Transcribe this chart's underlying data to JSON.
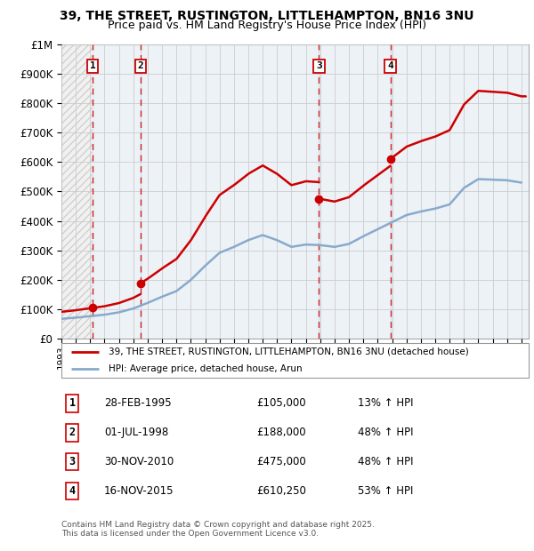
{
  "title": "39, THE STREET, RUSTINGTON, LITTLEHAMPTON, BN16 3NU",
  "subtitle": "Price paid vs. HM Land Registry's House Price Index (HPI)",
  "ylim": [
    0,
    1000000
  ],
  "yticks": [
    0,
    100000,
    200000,
    300000,
    400000,
    500000,
    600000,
    700000,
    800000,
    900000,
    1000000
  ],
  "ytick_labels": [
    "£0",
    "£100K",
    "£200K",
    "£300K",
    "£400K",
    "£500K",
    "£600K",
    "£700K",
    "£800K",
    "£900K",
    "£1M"
  ],
  "xlim_start": 1993.0,
  "xlim_end": 2025.5,
  "sale_dates": [
    1995.16,
    1998.5,
    2010.92,
    2015.88
  ],
  "sale_prices": [
    105000,
    188000,
    475000,
    610250
  ],
  "sale_labels": [
    "1",
    "2",
    "3",
    "4"
  ],
  "transaction_data": [
    {
      "num": "1",
      "date": "28-FEB-1995",
      "price": "£105,000",
      "hpi": "13% ↑ HPI"
    },
    {
      "num": "2",
      "date": "01-JUL-1998",
      "price": "£188,000",
      "hpi": "48% ↑ HPI"
    },
    {
      "num": "3",
      "date": "30-NOV-2010",
      "price": "£475,000",
      "hpi": "48% ↑ HPI"
    },
    {
      "num": "4",
      "date": "16-NOV-2015",
      "price": "£610,250",
      "hpi": "53% ↑ HPI"
    }
  ],
  "legend_line1": "39, THE STREET, RUSTINGTON, LITTLEHAMPTON, BN16 3NU (detached house)",
  "legend_line2": "HPI: Average price, detached house, Arun",
  "footer": "Contains HM Land Registry data © Crown copyright and database right 2025.\nThis data is licensed under the Open Government Licence v3.0.",
  "property_color": "#cc0000",
  "hpi_color": "#88aacc",
  "annotation_bg": "#ffffff",
  "annotation_border": "#cc0000",
  "dashed_line_color": "#cc0000",
  "shaded_color": "#ddeeff",
  "grid_color": "#cccccc",
  "background_color": "#ffffff",
  "hpi_years": [
    1993,
    1994,
    1995,
    1996,
    1997,
    1998,
    1999,
    2000,
    2001,
    2002,
    2003,
    2004,
    2005,
    2006,
    2007,
    2008,
    2009,
    2010,
    2011,
    2012,
    2013,
    2014,
    2015,
    2016,
    2017,
    2018,
    2019,
    2020,
    2021,
    2022,
    2023,
    2024,
    2025
  ],
  "hpi_values": [
    68000,
    72000,
    77000,
    82000,
    90000,
    103000,
    122000,
    143000,
    162000,
    200000,
    248000,
    292000,
    312000,
    335000,
    352000,
    335000,
    312000,
    320000,
    318000,
    312000,
    322000,
    348000,
    372000,
    396000,
    420000,
    432000,
    442000,
    456000,
    512000,
    542000,
    540000,
    538000,
    530000
  ],
  "prop_segs": [
    {
      "start_year": 1993.0,
      "end_year": 1995.16,
      "ref_year": 1995.16,
      "ref_price": 105000
    },
    {
      "start_year": 1995.16,
      "end_year": 1998.5,
      "ref_year": 1995.16,
      "ref_price": 105000
    },
    {
      "start_year": 1998.5,
      "end_year": 2010.92,
      "ref_year": 1998.5,
      "ref_price": 188000
    },
    {
      "start_year": 2010.92,
      "end_year": 2015.88,
      "ref_year": 2010.92,
      "ref_price": 475000
    },
    {
      "start_year": 2015.88,
      "end_year": 2025.3,
      "ref_year": 2015.88,
      "ref_price": 610250
    }
  ]
}
